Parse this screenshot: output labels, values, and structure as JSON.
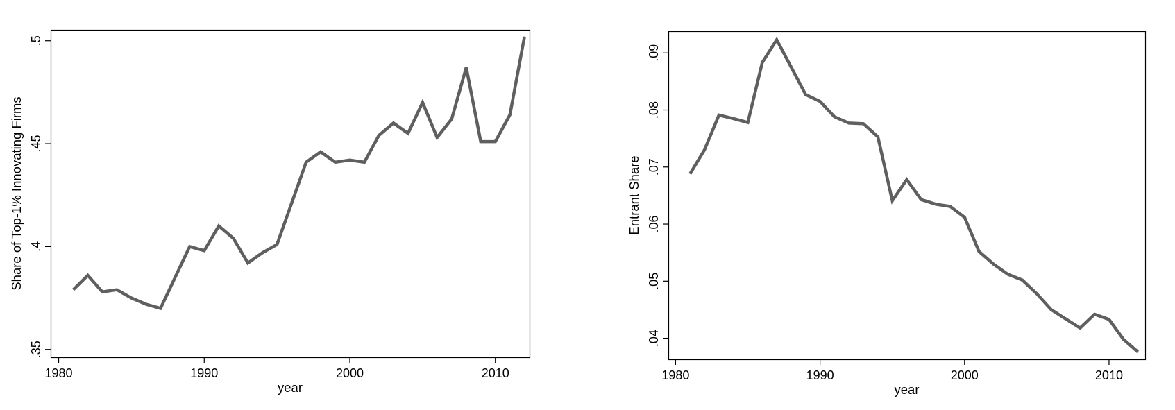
{
  "figure": {
    "background": "#ffffff",
    "line_color": "#5f5f5f",
    "axis_color": "#000000",
    "text_color": "#000000"
  },
  "chart_data": [
    {
      "id": "top1-share",
      "type": "line",
      "title": "",
      "xlabel": "year",
      "ylabel": "Share of Top-1% Innovating Firms",
      "legend": "none",
      "grid": false,
      "x": [
        1981,
        1982,
        1983,
        1984,
        1985,
        1986,
        1987,
        1988,
        1989,
        1990,
        1991,
        1992,
        1993,
        1994,
        1995,
        1996,
        1997,
        1998,
        1999,
        2000,
        2001,
        2002,
        2003,
        2004,
        2005,
        2006,
        2007,
        2008,
        2009,
        2010,
        2011,
        2012
      ],
      "values": [
        0.379,
        0.386,
        0.378,
        0.379,
        0.375,
        0.372,
        0.37,
        0.385,
        0.4,
        0.398,
        0.41,
        0.404,
        0.392,
        0.397,
        0.401,
        0.421,
        0.441,
        0.446,
        0.441,
        0.442,
        0.441,
        0.454,
        0.46,
        0.455,
        0.47,
        0.453,
        0.462,
        0.487,
        0.451,
        0.451,
        0.464,
        0.502
      ],
      "x_tick_values": [
        1980,
        1990,
        2000,
        2010
      ],
      "x_tick_labels": [
        "1980",
        "1990",
        "2000",
        "2010"
      ],
      "y_tick_values": [
        0.35,
        0.4,
        0.45,
        0.5
      ],
      "y_tick_labels": [
        ".35",
        ".4",
        ".45",
        ".5"
      ],
      "xlim": [
        1979.45,
        2012.35
      ],
      "ylim": [
        0.3462,
        0.5053
      ]
    },
    {
      "id": "entrant-share",
      "type": "line",
      "title": "",
      "xlabel": "year",
      "ylabel": "Entrant Share",
      "legend": "none",
      "grid": false,
      "x": [
        1981,
        1982,
        1983,
        1984,
        1985,
        1986,
        1987,
        1988,
        1989,
        1990,
        1991,
        1992,
        1993,
        1994,
        1995,
        1996,
        1997,
        1998,
        1999,
        2000,
        2001,
        2002,
        2003,
        2004,
        2005,
        2006,
        2007,
        2008,
        2009,
        2010,
        2011,
        2012
      ],
      "values": [
        0.0688,
        0.073,
        0.0791,
        0.0785,
        0.0778,
        0.0883,
        0.0923,
        0.0875,
        0.0827,
        0.0815,
        0.0788,
        0.0777,
        0.0776,
        0.0753,
        0.0641,
        0.0678,
        0.0643,
        0.0635,
        0.0631,
        0.0612,
        0.0552,
        0.053,
        0.0512,
        0.0502,
        0.0478,
        0.045,
        0.0434,
        0.0418,
        0.0442,
        0.0433,
        0.0398,
        0.0376
      ],
      "x_tick_values": [
        1980,
        1990,
        2000,
        2010
      ],
      "x_tick_labels": [
        "1980",
        "1990",
        "2000",
        "2010"
      ],
      "y_tick_values": [
        0.04,
        0.05,
        0.06,
        0.07,
        0.08,
        0.09
      ],
      "y_tick_labels": [
        ".04",
        ".05",
        ".06",
        ".07",
        ".08",
        ".09"
      ],
      "xlim": [
        1979.5,
        2012.5
      ],
      "ylim": [
        0.0363,
        0.0938
      ]
    }
  ]
}
